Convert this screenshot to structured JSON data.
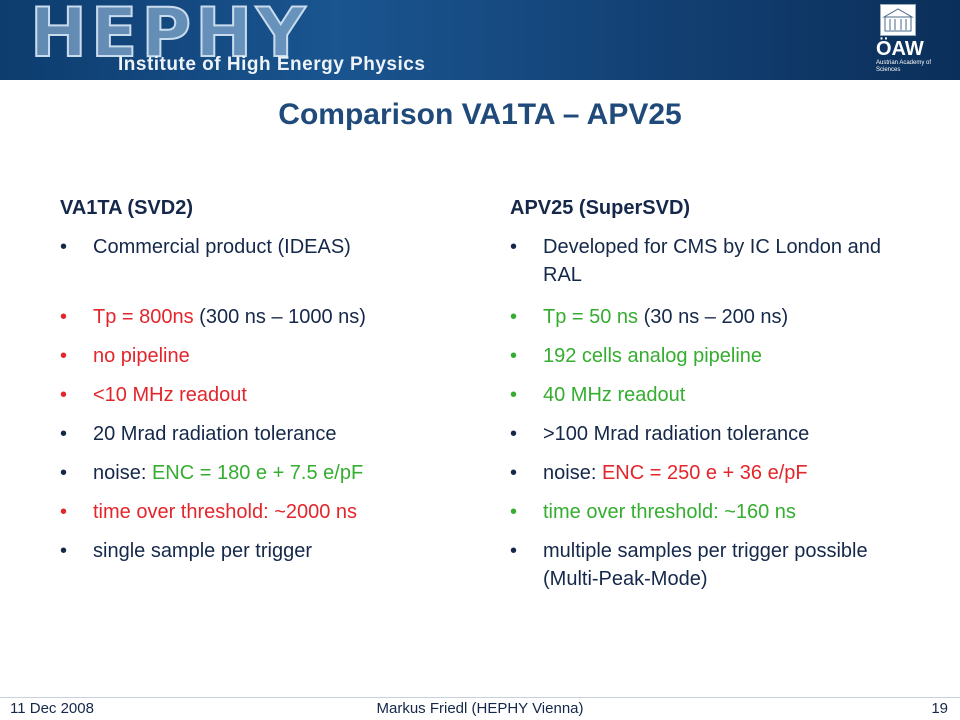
{
  "header": {
    "logo": "HEPHY",
    "institute": "Institute of High Energy Physics",
    "academy": "ÖAW",
    "academy_name": "Austrian Academy of Sciences"
  },
  "title": "Comparison VA1TA – APV25",
  "columns": [
    {
      "heading": "VA1TA (SVD2)",
      "items": [
        {
          "color": "#15284a",
          "segments": [
            {
              "text": "Commercial product (IDEAS)",
              "color": "#15284a"
            }
          ]
        },
        {
          "color": "#e3262b",
          "segments": [
            {
              "text": "Tp = 800ns",
              "color": "#e3262b"
            },
            {
              "text": " (300 ns – 1000 ns)",
              "color": "#15284a"
            }
          ]
        },
        {
          "color": "#e3262b",
          "segments": [
            {
              "text": "no pipeline",
              "color": "#e3262b"
            }
          ]
        },
        {
          "color": "#e3262b",
          "segments": [
            {
              "text": "<10 MHz readout",
              "color": "#e3262b"
            }
          ]
        },
        {
          "color": "#15284a",
          "segments": [
            {
              "text": "20 Mrad radiation tolerance",
              "color": "#15284a"
            }
          ]
        },
        {
          "color": "#15284a",
          "segments": [
            {
              "text": "noise: ",
              "color": "#15284a"
            },
            {
              "text": "ENC = 180 e + 7.5 e/pF",
              "color": "#35ad30"
            }
          ]
        },
        {
          "color": "#e3262b",
          "segments": [
            {
              "text": "time over threshold: ~2000 ns",
              "color": "#e3262b"
            }
          ]
        },
        {
          "color": "#15284a",
          "segments": [
            {
              "text": "single sample per trigger",
              "color": "#15284a"
            }
          ]
        }
      ]
    },
    {
      "heading": "APV25 (SuperSVD)",
      "items": [
        {
          "color": "#15284a",
          "segments": [
            {
              "text": "Developed for CMS by IC London and RAL",
              "color": "#15284a"
            }
          ]
        },
        {
          "color": "#35ad30",
          "segments": [
            {
              "text": "Tp = 50 ns",
              "color": "#35ad30"
            },
            {
              "text": " (30 ns – 200 ns)",
              "color": "#15284a"
            }
          ]
        },
        {
          "color": "#35ad30",
          "segments": [
            {
              "text": "192 cells analog pipeline",
              "color": "#35ad30"
            }
          ]
        },
        {
          "color": "#35ad30",
          "segments": [
            {
              "text": "40 MHz readout",
              "color": "#35ad30"
            }
          ]
        },
        {
          "color": "#15284a",
          "segments": [
            {
              "text": ">100 Mrad radiation tolerance",
              "color": "#15284a"
            }
          ]
        },
        {
          "color": "#15284a",
          "segments": [
            {
              "text": "noise: ",
              "color": "#15284a"
            },
            {
              "text": "ENC = 250 e + 36 e/pF",
              "color": "#e3262b"
            }
          ]
        },
        {
          "color": "#35ad30",
          "segments": [
            {
              "text": "time over threshold: ~160 ns",
              "color": "#35ad30"
            }
          ]
        },
        {
          "color": "#15284a",
          "segments": [
            {
              "text": "multiple samples per trigger possible (Multi-Peak-Mode)",
              "color": "#15284a"
            }
          ]
        }
      ]
    }
  ],
  "footer": {
    "date": "11 Dec 2008",
    "author": "Markus Friedl (HEPHY Vienna)",
    "page": "19"
  }
}
